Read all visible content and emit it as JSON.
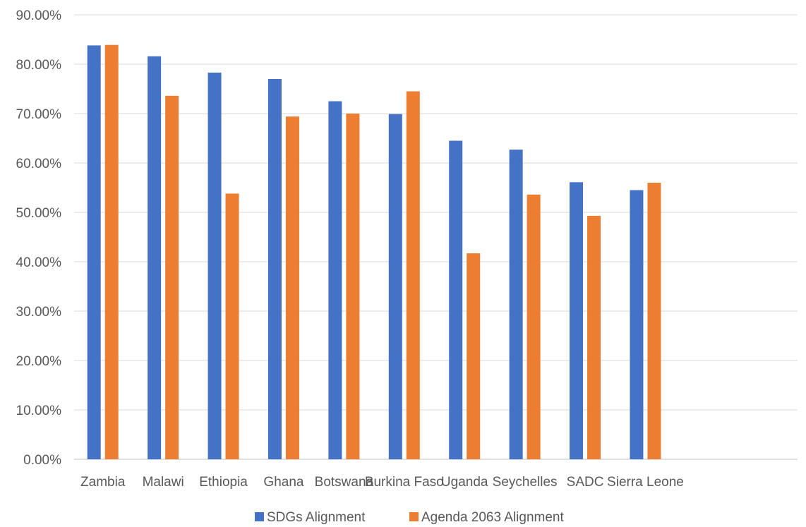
{
  "chart_data": {
    "type": "bar",
    "title": "",
    "xlabel": "",
    "ylabel": "",
    "ylim": [
      0,
      0.9
    ],
    "ytick_step": 0.1,
    "ytick_labels": [
      "0.00%",
      "10.00%",
      "20.00%",
      "30.00%",
      "40.00%",
      "50.00%",
      "60.00%",
      "70.00%",
      "80.00%",
      "90.00%"
    ],
    "grid": true,
    "legend_position": "bottom",
    "categories": [
      "Zambia",
      "Malawi",
      "Ethiopia",
      "Ghana",
      "Botswana",
      "Burkina Faso",
      "Uganda",
      "Seychelles",
      "SADC",
      "Sierra Leone",
      "",
      ""
    ],
    "series": [
      {
        "name": "SDGs Alignment",
        "color": "#4472C4",
        "values": [
          0.838,
          0.816,
          0.783,
          0.77,
          0.725,
          0.699,
          0.645,
          0.627,
          0.561,
          0.545,
          null,
          null
        ]
      },
      {
        "name": "Agenda 2063 Alignment",
        "color": "#ED7D31",
        "values": [
          0.839,
          0.736,
          0.538,
          0.694,
          0.7,
          0.745,
          0.417,
          0.536,
          0.493,
          0.56,
          null,
          null
        ]
      }
    ]
  }
}
